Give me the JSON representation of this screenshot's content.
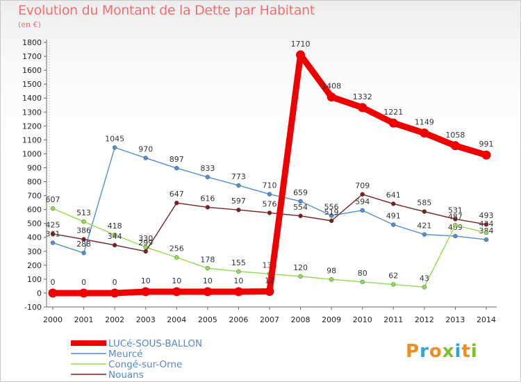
{
  "title": "Evolution du Montant de la Dette par Habitant",
  "subtitle": "(en €)",
  "logo": {
    "letters": [
      "P",
      "r",
      "o",
      "x",
      "i",
      "t",
      "i"
    ],
    "colors": [
      "#f28c1e",
      "#2aa6d8",
      "#f28c1e",
      "#7cbf2f",
      "#2aa6d8",
      "#f28c1e",
      "#7cbf2f"
    ]
  },
  "chart_data": {
    "type": "line",
    "title": "Evolution du Montant de la Dette par Habitant",
    "ylabel": "(en €)",
    "xlabel": "",
    "x": [
      "2000",
      "2001",
      "2002",
      "2003",
      "2004",
      "2005",
      "2006",
      "2007",
      "2008",
      "2009",
      "2010",
      "2011",
      "2012",
      "2013",
      "2014"
    ],
    "ylim": [
      -100,
      1800
    ],
    "yticks": [
      -100,
      0,
      100,
      200,
      300,
      400,
      500,
      600,
      700,
      800,
      900,
      1000,
      1100,
      1200,
      1300,
      1400,
      1500,
      1600,
      1700,
      1800
    ],
    "grid": false,
    "legend": "bottom-left",
    "series": [
      {
        "name": "LUCé-SOUS-BALLON",
        "color": "#ee0000",
        "values": [
          0,
          0,
          0,
          10,
          10,
          10,
          10,
          12,
          1710,
          1408,
          1332,
          1221,
          1149,
          1058,
          991
        ]
      },
      {
        "name": "Meurcé",
        "color": "#4f8fd0",
        "values": [
          361,
          288,
          1045,
          970,
          897,
          833,
          773,
          710,
          659,
          556,
          594,
          491,
          421,
          409,
          384
        ]
      },
      {
        "name": "Congé-sur-Orne",
        "color": "#8fdc50",
        "values": [
          607,
          513,
          418,
          330,
          256,
          178,
          155,
          138,
          120,
          98,
          80,
          62,
          43,
          487,
          434
        ]
      },
      {
        "name": "Nouans",
        "color": "#7a1f1f",
        "values": [
          425,
          386,
          344,
          299,
          647,
          616,
          597,
          576,
          554,
          519,
          709,
          641,
          585,
          531,
          493
        ]
      }
    ]
  }
}
